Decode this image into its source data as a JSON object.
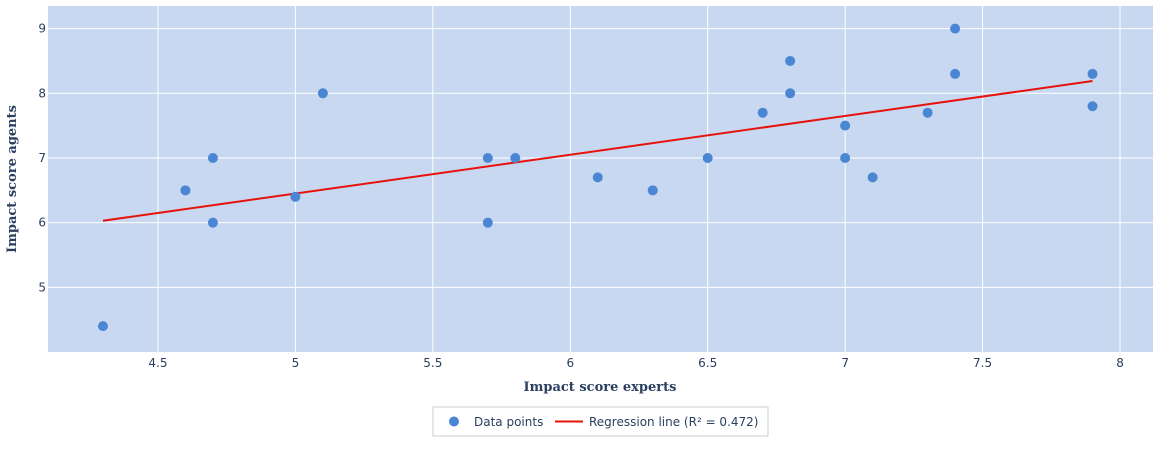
{
  "chart_data": {
    "type": "scatter",
    "xlabel": "Impact score experts",
    "ylabel": "Impact score agents",
    "xlim": [
      4.1,
      8.12
    ],
    "ylim": [
      4.0,
      9.35
    ],
    "xticks": [
      4.5,
      5,
      5.5,
      6,
      6.5,
      7,
      7.5,
      8
    ],
    "yticks": [
      5,
      6,
      7,
      8,
      9
    ],
    "grid": true,
    "legend_position": "bottom-center",
    "colors": {
      "plot_bg": "#c7d8f0",
      "grid": "#ffffff",
      "points": "#4a86d4",
      "line": "#e8120c",
      "text": "#2a3f5f"
    },
    "series": [
      {
        "name": "Data points",
        "type": "scatter",
        "points": [
          {
            "x": 4.3,
            "y": 4.4
          },
          {
            "x": 4.6,
            "y": 6.5
          },
          {
            "x": 4.7,
            "y": 7.0
          },
          {
            "x": 4.7,
            "y": 6.0
          },
          {
            "x": 5.0,
            "y": 6.4
          },
          {
            "x": 5.1,
            "y": 8.0
          },
          {
            "x": 5.7,
            "y": 7.0
          },
          {
            "x": 5.7,
            "y": 6.0
          },
          {
            "x": 5.8,
            "y": 7.0
          },
          {
            "x": 6.1,
            "y": 6.7
          },
          {
            "x": 6.3,
            "y": 6.5
          },
          {
            "x": 6.5,
            "y": 7.0
          },
          {
            "x": 6.7,
            "y": 7.7
          },
          {
            "x": 6.8,
            "y": 8.5
          },
          {
            "x": 6.8,
            "y": 8.0
          },
          {
            "x": 7.0,
            "y": 7.5
          },
          {
            "x": 7.0,
            "y": 7.0
          },
          {
            "x": 7.1,
            "y": 6.7
          },
          {
            "x": 7.3,
            "y": 7.7
          },
          {
            "x": 7.4,
            "y": 9.0
          },
          {
            "x": 7.4,
            "y": 8.3
          },
          {
            "x": 7.9,
            "y": 8.3
          },
          {
            "x": 7.9,
            "y": 7.8
          }
        ]
      },
      {
        "name": "Regression line (R² = 0.472)",
        "type": "line",
        "points": [
          {
            "x": 4.3,
            "y": 6.03
          },
          {
            "x": 7.9,
            "y": 8.19
          }
        ]
      }
    ]
  }
}
